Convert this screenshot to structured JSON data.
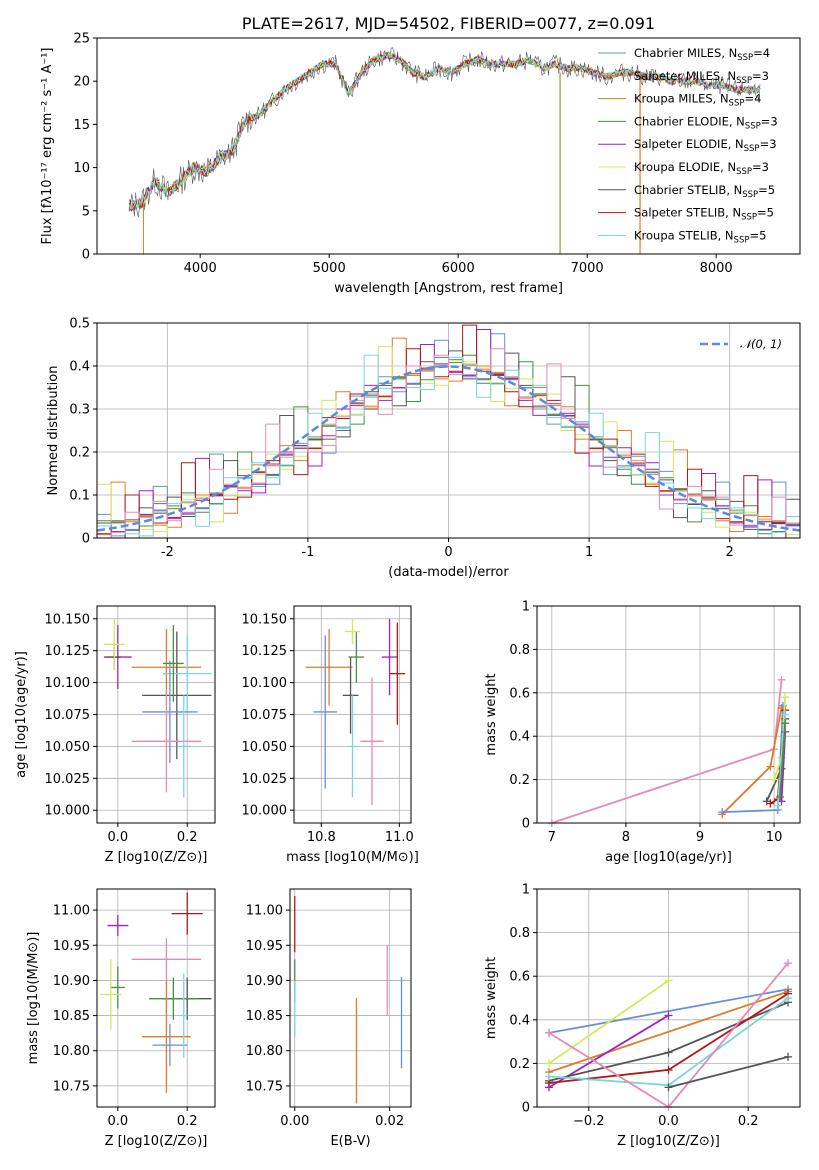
{
  "figure_title": "PLATE=2617, MJD=54502, FIBERID=0077, z=0.091",
  "colors": [
    "#6a8fd6",
    "#e07b2a",
    "#9a9a2a",
    "#4a8a4a",
    "#a020c0",
    "#d4e85a",
    "#555555",
    "#b01818",
    "#7ad6d8",
    "#e48ab8"
  ],
  "chart_data": [
    {
      "id": "spectrum",
      "type": "line",
      "title": "PLATE=2617, MJD=54502, FIBERID=0077, z=0.091",
      "xlabel": "wavelength [Angstrom, rest frame]",
      "ylabel": "Flux [fλ10⁻¹⁷ erg cm⁻² s⁻¹ A⁻¹]",
      "xlim": [
        3200,
        8650
      ],
      "ylim": [
        0,
        25
      ],
      "xticks": [
        4000,
        5000,
        6000,
        7000,
        8000
      ],
      "yticks": [
        0,
        5,
        10,
        15,
        20,
        25
      ],
      "grid": false,
      "legend_position": "upper-right",
      "x": [
        3450,
        3550,
        3650,
        3750,
        3850,
        3950,
        4050,
        4150,
        4250,
        4350,
        4450,
        4550,
        4650,
        4750,
        4850,
        4950,
        5050,
        5150,
        5250,
        5350,
        5450,
        5550,
        5650,
        5750,
        5850,
        5950,
        6050,
        6150,
        6250,
        6350,
        6450,
        6550,
        6650,
        6750,
        6850,
        6950,
        7050,
        7150,
        7250,
        7350,
        7450,
        7550,
        7650,
        7750,
        7850,
        7950,
        8050,
        8150,
        8250,
        8350
      ],
      "y": [
        5.5,
        6.0,
        8.5,
        7.0,
        8.5,
        10.0,
        9.5,
        11.0,
        12.0,
        15.5,
        16.0,
        17.5,
        19.0,
        20.0,
        21.0,
        22.0,
        22.0,
        18.5,
        21.0,
        22.5,
        23.0,
        22.5,
        21.0,
        20.5,
        21.5,
        21.0,
        22.0,
        22.5,
        22.0,
        22.0,
        22.0,
        22.5,
        21.5,
        22.0,
        21.5,
        21.5,
        21.0,
        20.5,
        21.0,
        21.0,
        20.5,
        20.5,
        20.0,
        20.0,
        20.0,
        19.5,
        19.5,
        19.0,
        19.0,
        19.0
      ],
      "series": [
        {
          "name": "Chabrier MILES, N_SSP=4",
          "label_main": "Chabrier MILES, N",
          "label_sub": "SSP",
          "label_end": "=4"
        },
        {
          "name": "Salpeter MILES, N_SSP=3",
          "label_main": "Salpeter MILES, N",
          "label_sub": "SSP",
          "label_end": "=3"
        },
        {
          "name": "Kroupa MILES, N_SSP=4",
          "label_main": "Kroupa MILES, N",
          "label_sub": "SSP",
          "label_end": "=4"
        },
        {
          "name": "Chabrier ELODIE, N_SSP=3",
          "label_main": "Chabrier ELODIE, N",
          "label_sub": "SSP",
          "label_end": "=3"
        },
        {
          "name": "Salpeter ELODIE, N_SSP=3",
          "label_main": "Salpeter ELODIE, N",
          "label_sub": "SSP",
          "label_end": "=3"
        },
        {
          "name": "Kroupa ELODIE, N_SSP=3",
          "label_main": "Kroupa ELODIE, N",
          "label_sub": "SSP",
          "label_end": "=3"
        },
        {
          "name": "Chabrier STELIB, N_SSP=5",
          "label_main": "Chabrier STELIB, N",
          "label_sub": "SSP",
          "label_end": "=5"
        },
        {
          "name": "Salpeter STELIB, N_SSP=5",
          "label_main": "Salpeter STELIB, N",
          "label_sub": "SSP",
          "label_end": "=5"
        },
        {
          "name": "Kroupa STELIB, N_SSP=5",
          "label_main": "Kroupa STELIB, N",
          "label_sub": "SSP",
          "label_end": "=5"
        }
      ]
    },
    {
      "id": "residuals",
      "type": "line",
      "xlabel": "(data-model)/error",
      "ylabel": "Normed distribution",
      "xlim": [
        -2.5,
        2.5
      ],
      "ylim": [
        0,
        0.5
      ],
      "xticks": [
        -2,
        -1,
        0,
        1,
        2
      ],
      "yticks": [
        0.0,
        0.1,
        0.2,
        0.3,
        0.4,
        0.5
      ],
      "grid": true,
      "legend_position": "upper-right",
      "legend_label": "𝒩(0, 1)",
      "bin_edges_start": -2.5,
      "bin_width": 0.1,
      "histogram": [
        0.02,
        0.025,
        0.03,
        0.04,
        0.05,
        0.06,
        0.07,
        0.08,
        0.09,
        0.11,
        0.13,
        0.14,
        0.16,
        0.18,
        0.2,
        0.22,
        0.25,
        0.27,
        0.3,
        0.32,
        0.34,
        0.36,
        0.37,
        0.38,
        0.39,
        0.4,
        0.39,
        0.38,
        0.37,
        0.36,
        0.34,
        0.32,
        0.3,
        0.27,
        0.25,
        0.22,
        0.2,
        0.18,
        0.16,
        0.14,
        0.12,
        0.1,
        0.09,
        0.08,
        0.06,
        0.05,
        0.04,
        0.03,
        0.025,
        0.02
      ]
    },
    {
      "id": "age-vs-Z",
      "type": "scatter",
      "xlabel": "Z [log10(Z/Z⊙)]",
      "ylabel": "age  [log10(age/yr)]",
      "xlim": [
        -0.06,
        0.28
      ],
      "ylim": [
        9.99,
        10.16
      ],
      "xticks": [
        0.0,
        0.2
      ],
      "xticklabels": [
        "0.0",
        "0.2"
      ],
      "yticks": [
        10.0,
        10.025,
        10.05,
        10.075,
        10.1,
        10.125,
        10.15
      ],
      "yticklabels": [
        "10.000",
        "10.025",
        "10.050",
        "10.075",
        "10.100",
        "10.125",
        "10.150"
      ],
      "grid": true,
      "points": [
        {
          "x": 0.0,
          "y": 10.12,
          "xerr": 0.04,
          "yerr": 0.025,
          "c": 4
        },
        {
          "x": -0.01,
          "y": 10.12,
          "xerr": 0.02,
          "yerr": 0.01,
          "c": 6
        },
        {
          "x": -0.01,
          "y": 10.13,
          "xerr": 0.03,
          "yerr": 0.02,
          "c": 5
        },
        {
          "x": 0.14,
          "y": 10.112,
          "xerr": 0.1,
          "yerr": 0.03,
          "c": 1
        },
        {
          "x": 0.17,
          "y": 10.09,
          "xerr": 0.1,
          "yerr": 0.05,
          "c": 6
        },
        {
          "x": 0.2,
          "y": 10.107,
          "xerr": 0.07,
          "yerr": 0.03,
          "c": 8
        },
        {
          "x": 0.15,
          "y": 10.077,
          "xerr": 0.08,
          "yerr": 0.04,
          "c": 0
        },
        {
          "x": 0.16,
          "y": 10.115,
          "xerr": 0.03,
          "yerr": 0.03,
          "c": 3
        },
        {
          "x": 0.14,
          "y": 10.054,
          "xerr": 0.1,
          "yerr": 0.04,
          "c": 9
        },
        {
          "x": 0.19,
          "y": 10.05,
          "xerr": 0.02,
          "yerr": 0.04,
          "c": 8
        }
      ]
    },
    {
      "id": "age-vs-mass",
      "type": "scatter",
      "xlabel": "mass [log10(M/M⊙)]",
      "xlim": [
        10.73,
        11.03
      ],
      "ylim": [
        9.99,
        10.16
      ],
      "xticks": [
        10.8,
        11.0
      ],
      "xticklabels": [
        "10.8",
        "11.0"
      ],
      "yticks": [
        10.0,
        10.025,
        10.05,
        10.075,
        10.1,
        10.125,
        10.15
      ],
      "yticklabels": [
        "10.000",
        "10.025",
        "10.050",
        "10.075",
        "10.100",
        "10.125",
        "10.150"
      ],
      "grid": true,
      "points": [
        {
          "x": 10.82,
          "y": 10.112,
          "xerr": 0.06,
          "yerr": 0.03,
          "c": 1
        },
        {
          "x": 10.81,
          "y": 10.077,
          "xerr": 0.03,
          "yerr": 0.06,
          "c": 0
        },
        {
          "x": 10.875,
          "y": 10.09,
          "xerr": 0.02,
          "yerr": 0.03,
          "c": 6
        },
        {
          "x": 10.89,
          "y": 10.12,
          "xerr": 0.02,
          "yerr": 0.02,
          "c": 3
        },
        {
          "x": 10.88,
          "y": 10.14,
          "xerr": 0.02,
          "yerr": 0.01,
          "c": 5
        },
        {
          "x": 10.88,
          "y": 10.05,
          "xerr": 0.01,
          "yerr": 0.04,
          "c": 8
        },
        {
          "x": 10.93,
          "y": 10.054,
          "xerr": 0.03,
          "yerr": 0.05,
          "c": 9
        },
        {
          "x": 10.975,
          "y": 10.12,
          "xerr": 0.02,
          "yerr": 0.03,
          "c": 4
        },
        {
          "x": 10.995,
          "y": 10.107,
          "xerr": 0.02,
          "yerr": 0.04,
          "c": 7
        }
      ]
    },
    {
      "id": "mass-weight-vs-age",
      "type": "line",
      "xlabel": "age  [log10(age/yr)]",
      "ylabel": "mass weight",
      "xlim": [
        6.8,
        10.35
      ],
      "ylim": [
        0,
        1.0
      ],
      "xticks": [
        7,
        8,
        9,
        10
      ],
      "yticks": [
        0.0,
        0.2,
        0.4,
        0.6,
        0.8,
        1.0
      ],
      "grid": true,
      "series": [
        {
          "c": 9,
          "x": [
            7.0,
            10.0,
            10.1
          ],
          "y": [
            0.0,
            0.34,
            0.66
          ]
        },
        {
          "c": 1,
          "x": [
            9.3,
            9.95,
            10.1
          ],
          "y": [
            0.04,
            0.26,
            0.53
          ]
        },
        {
          "c": 0,
          "x": [
            9.3,
            10.05,
            10.12
          ],
          "y": [
            0.05,
            0.06,
            0.54
          ]
        },
        {
          "c": 6,
          "x": [
            9.9,
            10.1,
            10.15
          ],
          "y": [
            0.1,
            0.25,
            0.48
          ]
        },
        {
          "c": 7,
          "x": [
            9.95,
            10.05,
            10.15
          ],
          "y": [
            0.09,
            0.11,
            0.52
          ]
        },
        {
          "c": 5,
          "x": [
            10.0,
            10.1,
            10.15
          ],
          "y": [
            0.2,
            0.3,
            0.58
          ]
        },
        {
          "c": 4,
          "x": [
            10.1,
            10.15
          ],
          "y": [
            0.1,
            0.42
          ]
        },
        {
          "c": 8,
          "x": [
            10.05,
            10.15
          ],
          "y": [
            0.08,
            0.5
          ]
        },
        {
          "c": 3,
          "x": [
            10.08,
            10.15
          ],
          "y": [
            0.12,
            0.46
          ]
        }
      ]
    },
    {
      "id": "mass-vs-Z",
      "type": "scatter",
      "xlabel": "Z [log10(Z/Z⊙)]",
      "ylabel": "mass [log10(M/M⊙)]",
      "xlim": [
        -0.06,
        0.28
      ],
      "ylim": [
        10.72,
        11.03
      ],
      "xticks": [
        0.0,
        0.2
      ],
      "xticklabels": [
        "0.0",
        "0.2"
      ],
      "yticks": [
        10.75,
        10.8,
        10.85,
        10.9,
        10.95,
        11.0
      ],
      "yticklabels": [
        "10.75",
        "10.80",
        "10.85",
        "10.90",
        "10.95",
        "11.00"
      ],
      "grid": true,
      "points": [
        {
          "x": 0.0,
          "y": 10.978,
          "xerr": 0.03,
          "yerr": 0.015,
          "c": 4
        },
        {
          "x": 0.2,
          "y": 10.995,
          "xerr": 0.045,
          "yerr": 0.03,
          "c": 7
        },
        {
          "x": 0.0,
          "y": 10.89,
          "xerr": 0.02,
          "yerr": 0.03,
          "c": 3
        },
        {
          "x": -0.02,
          "y": 10.88,
          "xerr": 0.03,
          "yerr": 0.05,
          "c": 5
        },
        {
          "x": 0.14,
          "y": 10.93,
          "xerr": 0.1,
          "yerr": 0.03,
          "c": 9
        },
        {
          "x": 0.2,
          "y": 10.874,
          "xerr": 0.07,
          "yerr": 0.03,
          "c": 6
        },
        {
          "x": 0.16,
          "y": 10.874,
          "xerr": 0.07,
          "yerr": 0.03,
          "c": 3
        },
        {
          "x": 0.14,
          "y": 10.82,
          "xerr": 0.07,
          "yerr": 0.08,
          "c": 1
        },
        {
          "x": 0.15,
          "y": 10.808,
          "xerr": 0.05,
          "yerr": 0.03,
          "c": 0
        },
        {
          "x": 0.19,
          "y": 10.85,
          "xerr": 0.01,
          "yerr": 0.06,
          "c": 8
        }
      ]
    },
    {
      "id": "mass-vs-EBV",
      "type": "scatter",
      "xlabel": "E(B-V)",
      "xlim": [
        -0.001,
        0.0245
      ],
      "ylim": [
        10.72,
        11.03
      ],
      "xticks": [
        0.0,
        0.02
      ],
      "xticklabels": [
        "0.00",
        "0.02"
      ],
      "yticks": [
        10.75,
        10.8,
        10.85,
        10.9,
        10.95,
        11.0
      ],
      "yticklabels": [
        "10.75",
        "10.80",
        "10.85",
        "10.90",
        "10.95",
        "11.00"
      ],
      "grid": true,
      "points": [
        {
          "x": 0.0,
          "y": 10.98,
          "xerr": 0.0,
          "yerr": 0.04,
          "c": 7
        },
        {
          "x": 0.0,
          "y": 10.9,
          "xerr": 0.0,
          "yerr": 0.03,
          "c": 3
        },
        {
          "x": 0.0,
          "y": 10.86,
          "xerr": 0.0,
          "yerr": 0.04,
          "c": 8
        },
        {
          "x": 0.013,
          "y": 10.8,
          "xerr": 0.0,
          "yerr": 0.075,
          "c": 1
        },
        {
          "x": 0.0195,
          "y": 10.9,
          "xerr": 0.0,
          "yerr": 0.05,
          "c": 9
        },
        {
          "x": 0.0225,
          "y": 10.84,
          "xerr": 0.0,
          "yerr": 0.065,
          "c": 0
        }
      ]
    },
    {
      "id": "mass-weight-vs-Z",
      "type": "line",
      "xlabel": "Z [log10(Z/Z⊙)]",
      "ylabel": "mass weight",
      "xlim": [
        -0.33,
        0.33
      ],
      "ylim": [
        0,
        1.0
      ],
      "xticks": [
        -0.2,
        0.0,
        0.2
      ],
      "xticklabels": [
        "−0.2",
        "0.0",
        "0.2"
      ],
      "yticks": [
        0.0,
        0.2,
        0.4,
        0.6,
        0.8,
        1.0
      ],
      "grid": true,
      "series": [
        {
          "c": 0,
          "x": [
            -0.3,
            0.3
          ],
          "y": [
            0.34,
            0.54
          ]
        },
        {
          "c": 1,
          "x": [
            -0.3,
            0.3
          ],
          "y": [
            0.16,
            0.53
          ]
        },
        {
          "c": 5,
          "x": [
            -0.3,
            0.0
          ],
          "y": [
            0.2,
            0.58
          ]
        },
        {
          "c": 4,
          "x": [
            -0.3,
            0.0
          ],
          "y": [
            0.09,
            0.42
          ]
        },
        {
          "c": 6,
          "x": [
            -0.3,
            0.0,
            0.3
          ],
          "y": [
            0.12,
            0.25,
            0.48
          ]
        },
        {
          "c": 7,
          "x": [
            -0.3,
            0.0,
            0.3
          ],
          "y": [
            0.11,
            0.17,
            0.52
          ]
        },
        {
          "c": 8,
          "x": [
            -0.3,
            0.0,
            0.3
          ],
          "y": [
            0.14,
            0.1,
            0.5
          ]
        },
        {
          "c": 9,
          "x": [
            -0.3,
            0.0,
            0.3
          ],
          "y": [
            0.34,
            0.0,
            0.66
          ]
        },
        {
          "c": 6,
          "x": [
            0.0,
            0.3
          ],
          "y": [
            0.09,
            0.23
          ]
        }
      ]
    }
  ]
}
